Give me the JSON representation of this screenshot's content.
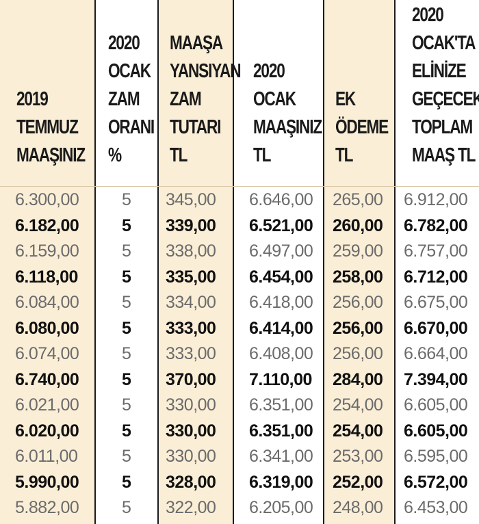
{
  "columns": [
    {
      "id": "c1",
      "header": [
        "2019",
        "TEMMUZ",
        "MAAŞINIZ"
      ]
    },
    {
      "id": "c2",
      "header": [
        "2020",
        "OCAK",
        "ZAM",
        "ORANI",
        "%"
      ]
    },
    {
      "id": "c3",
      "header": [
        "MAAŞA",
        "YANSIYAN",
        "ZAM",
        "TUTARI",
        "TL"
      ]
    },
    {
      "id": "c4",
      "header": [
        "2020",
        "OCAK",
        "MAAŞINIZ",
        "TL"
      ]
    },
    {
      "id": "c5",
      "header": [
        "EK",
        "ÖDEME",
        "TL"
      ]
    },
    {
      "id": "c6",
      "header": [
        "2020",
        "OCAK'TA",
        "ELİNİZE",
        "GEÇECEK",
        "TOPLAM",
        "MAAŞ TL"
      ]
    }
  ],
  "rows": [
    {
      "bold": false,
      "cells": [
        "6.300,00",
        "5",
        "345,00",
        "6.646,00",
        "265,00",
        "6.912,00"
      ]
    },
    {
      "bold": true,
      "cells": [
        "6.182,00",
        "5",
        "339,00",
        "6.521,00",
        "260,00",
        "6.782,00"
      ]
    },
    {
      "bold": false,
      "cells": [
        "6.159,00",
        "5",
        "338,00",
        "6.497,00",
        "259,00",
        "6.757,00"
      ]
    },
    {
      "bold": true,
      "cells": [
        "6.118,00",
        "5",
        "335,00",
        "6.454,00",
        "258,00",
        "6.712,00"
      ]
    },
    {
      "bold": false,
      "cells": [
        "6.084,00",
        "5",
        "334,00",
        "6.418,00",
        "256,00",
        "6.675,00"
      ]
    },
    {
      "bold": true,
      "cells": [
        "6.080,00",
        "5",
        "333,00",
        "6.414,00",
        "256,00",
        "6.670,00"
      ]
    },
    {
      "bold": false,
      "cells": [
        "6.074,00",
        "5",
        "333,00",
        "6.408,00",
        "256,00",
        "6.664,00"
      ]
    },
    {
      "bold": true,
      "cells": [
        "6.740,00",
        "5",
        "370,00",
        "7.110,00",
        "284,00",
        "7.394,00"
      ]
    },
    {
      "bold": false,
      "cells": [
        "6.021,00",
        "5",
        "330,00",
        "6.351,00",
        "254,00",
        "6.605,00"
      ]
    },
    {
      "bold": true,
      "cells": [
        "6.020,00",
        "5",
        "330,00",
        "6.351,00",
        "254,00",
        "6.605,00"
      ]
    },
    {
      "bold": false,
      "cells": [
        "6.011,00",
        "5",
        "330,00",
        "6.341,00",
        "253,00",
        "6.595,00"
      ]
    },
    {
      "bold": true,
      "cells": [
        "5.990,00",
        "5",
        "328,00",
        "6.319,00",
        "252,00",
        "6.572,00"
      ]
    },
    {
      "bold": false,
      "cells": [
        "5.882,00",
        "5",
        "322,00",
        "6.205,00",
        "248,00",
        "6.453,00"
      ]
    }
  ]
}
